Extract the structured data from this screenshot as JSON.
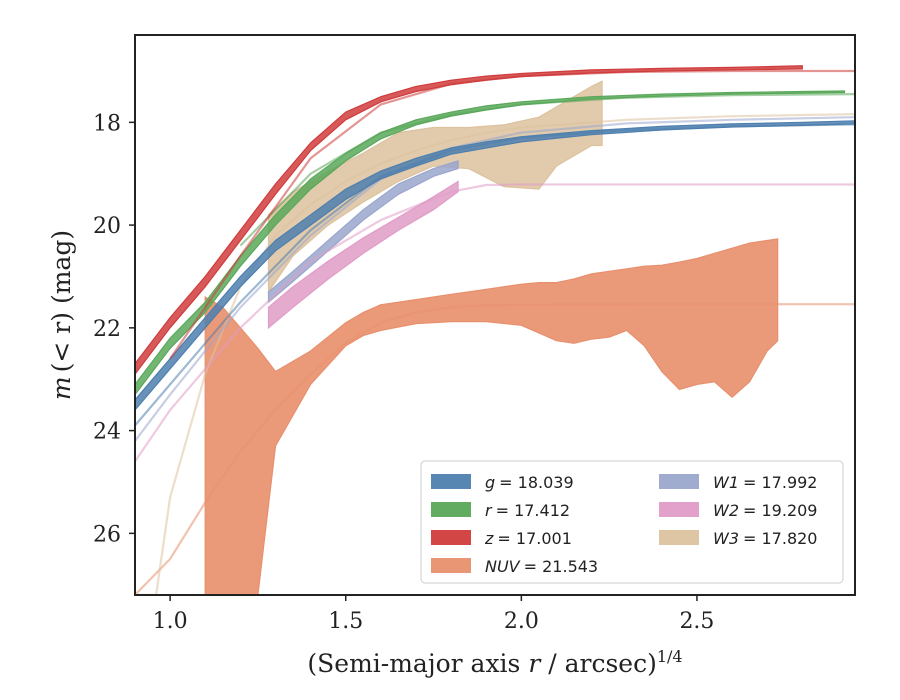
{
  "chart_data": {
    "type": "line",
    "xlabel_main": "(Semi-major axis ",
    "xlabel_var": "r",
    "xlabel_rest": " / arcsec)",
    "xlabel_sup": "1/4",
    "ylabel_main": "m",
    "ylabel_rest": "(< r) (mag)",
    "xlim": [
      0.9,
      2.95
    ],
    "ylim": [
      27.2,
      16.3
    ],
    "y_inverted": true,
    "xticks": [
      "1.0",
      "1.5",
      "2.0",
      "2.5"
    ],
    "yticks": [
      "18",
      "20",
      "22",
      "24",
      "26"
    ],
    "legend_position": "lower-right",
    "legend_columns": 2,
    "grid": false,
    "series": [
      {
        "name": "g = 18.039",
        "legend_var": "g",
        "legend_value": "= 18.039",
        "color": "#4e7fae",
        "kind": "band",
        "x": [
          0.9,
          1.0,
          1.1,
          1.2,
          1.3,
          1.4,
          1.5,
          1.6,
          1.7,
          1.8,
          1.9,
          2.0,
          2.2,
          2.4,
          2.6,
          2.8,
          2.95
        ],
        "y_upper": [
          23.4,
          22.6,
          21.8,
          21.0,
          20.3,
          19.8,
          19.3,
          18.95,
          18.7,
          18.5,
          18.38,
          18.28,
          18.16,
          18.08,
          18.03,
          18.0,
          17.97
        ],
        "y_lower": [
          23.6,
          22.8,
          22.0,
          21.2,
          20.5,
          20.0,
          19.5,
          19.1,
          18.85,
          18.62,
          18.5,
          18.38,
          18.24,
          18.15,
          18.09,
          18.06,
          18.03
        ],
        "model_x": [
          0.9,
          1.0,
          1.2,
          1.4,
          1.6,
          1.8,
          2.0,
          2.3,
          2.6,
          2.95
        ],
        "model_y": [
          23.9,
          23.1,
          21.5,
          20.1,
          19.05,
          18.55,
          18.3,
          18.15,
          18.08,
          18.04
        ]
      },
      {
        "name": "r = 17.412",
        "legend_var": "r",
        "legend_value": "= 17.412",
        "color": "#5aa85a",
        "kind": "band",
        "x": [
          0.9,
          1.0,
          1.1,
          1.2,
          1.3,
          1.4,
          1.5,
          1.6,
          1.7,
          1.8,
          1.9,
          2.0,
          2.2,
          2.4,
          2.6,
          2.8,
          2.92
        ],
        "y_upper": [
          23.1,
          22.2,
          21.5,
          20.6,
          19.8,
          19.1,
          18.6,
          18.2,
          17.95,
          17.8,
          17.68,
          17.6,
          17.5,
          17.45,
          17.42,
          17.4,
          17.39
        ],
        "y_lower": [
          23.3,
          22.4,
          21.7,
          20.8,
          20.0,
          19.3,
          18.75,
          18.32,
          18.05,
          17.88,
          17.76,
          17.66,
          17.55,
          17.49,
          17.45,
          17.43,
          17.42
        ],
        "model_x": [
          1.2,
          1.4,
          1.6,
          1.8,
          2.0,
          2.3,
          2.6,
          2.95
        ],
        "model_y": [
          20.4,
          19.0,
          18.2,
          17.85,
          17.65,
          17.52,
          17.47,
          17.45
        ]
      },
      {
        "name": "z = 17.001",
        "legend_var": "z",
        "legend_value": "= 17.001",
        "color": "#d03c3c",
        "kind": "band",
        "x": [
          0.9,
          1.0,
          1.1,
          1.2,
          1.3,
          1.4,
          1.5,
          1.6,
          1.7,
          1.8,
          1.9,
          2.0,
          2.2,
          2.4,
          2.6,
          2.8
        ],
        "y_upper": [
          22.7,
          21.8,
          21.0,
          20.1,
          19.2,
          18.4,
          17.8,
          17.5,
          17.3,
          17.18,
          17.1,
          17.05,
          16.98,
          16.95,
          16.93,
          16.9
        ],
        "y_lower": [
          22.9,
          22.0,
          21.2,
          20.3,
          19.4,
          18.55,
          17.95,
          17.6,
          17.4,
          17.27,
          17.18,
          17.11,
          17.04,
          17.0,
          16.98,
          16.96
        ],
        "model_x": [
          1.0,
          1.2,
          1.4,
          1.6,
          1.8,
          2.0,
          2.3,
          2.6,
          2.95
        ],
        "model_y": [
          22.6,
          20.6,
          18.7,
          17.65,
          17.25,
          17.1,
          17.02,
          17.0,
          17.0
        ]
      },
      {
        "name": "NUV = 21.543",
        "legend_var": "NUV",
        "legend_value": "= 21.543",
        "color": "#e8906e",
        "kind": "band",
        "x": [
          1.1,
          1.15,
          1.2,
          1.25,
          1.3,
          1.4,
          1.5,
          1.55,
          1.6,
          1.7,
          1.8,
          1.9,
          2.0,
          2.05,
          2.1,
          2.15,
          2.2,
          2.25,
          2.3,
          2.35,
          2.4,
          2.45,
          2.5,
          2.55,
          2.6,
          2.65,
          2.7,
          2.73
        ],
        "y_upper": [
          21.4,
          21.6,
          22.0,
          22.4,
          22.85,
          22.45,
          21.9,
          21.7,
          21.55,
          21.45,
          21.35,
          21.25,
          21.15,
          21.12,
          21.12,
          21.05,
          20.95,
          20.9,
          20.85,
          20.8,
          20.78,
          20.72,
          20.65,
          20.55,
          20.45,
          20.35,
          20.3,
          20.27
        ],
        "y_lower": [
          27.2,
          27.2,
          27.2,
          27.2,
          24.3,
          23.1,
          22.35,
          22.15,
          22.05,
          21.92,
          21.88,
          21.88,
          21.95,
          22.1,
          22.25,
          22.3,
          22.22,
          22.18,
          22.05,
          22.35,
          22.85,
          23.2,
          23.1,
          23.05,
          23.35,
          23.05,
          22.45,
          22.25
        ],
        "model_x": [
          0.9,
          1.0,
          1.1,
          1.2,
          1.3,
          1.4,
          1.5,
          1.6,
          1.7,
          1.8,
          1.9,
          2.0,
          2.5,
          2.95
        ],
        "model_y": [
          27.2,
          26.5,
          25.4,
          24.4,
          23.6,
          22.9,
          22.3,
          21.9,
          21.7,
          21.6,
          21.56,
          21.55,
          21.54,
          21.54
        ]
      },
      {
        "name": "W1 = 17.992",
        "legend_var": "W1",
        "legend_value": "= 17.992",
        "color": "#9aa6cc",
        "kind": "band",
        "x": [
          1.28,
          1.35,
          1.45,
          1.55,
          1.65,
          1.75,
          1.82
        ],
        "y_upper": [
          21.3,
          20.9,
          20.3,
          19.7,
          19.2,
          18.9,
          18.75
        ],
        "y_lower": [
          21.5,
          21.1,
          20.5,
          19.9,
          19.4,
          19.05,
          18.9
        ],
        "model_x": [
          0.9,
          1.0,
          1.2,
          1.4,
          1.6,
          1.8,
          2.0,
          2.3,
          2.6,
          2.95
        ],
        "model_y": [
          24.2,
          23.3,
          21.6,
          20.2,
          19.1,
          18.5,
          18.2,
          18.02,
          17.95,
          17.9
        ]
      },
      {
        "name": "W2 = 19.209",
        "legend_var": "W2",
        "legend_value": "= 19.209",
        "color": "#e09cc7",
        "kind": "band",
        "x": [
          1.28,
          1.35,
          1.45,
          1.55,
          1.65,
          1.75,
          1.82
        ],
        "y_upper": [
          21.6,
          21.2,
          20.7,
          20.25,
          19.85,
          19.45,
          19.15
        ],
        "y_lower": [
          22.0,
          21.6,
          21.05,
          20.55,
          20.1,
          19.7,
          19.35
        ],
        "model_x": [
          0.9,
          1.0,
          1.2,
          1.4,
          1.6,
          1.8,
          1.9,
          2.0,
          2.5,
          2.95
        ],
        "model_y": [
          24.6,
          23.6,
          22.0,
          20.7,
          19.9,
          19.35,
          19.22,
          19.21,
          19.21,
          19.21
        ]
      },
      {
        "name": "W3 = 17.820",
        "legend_var": "W3",
        "legend_value": "= 17.820",
        "color": "#dcc29e",
        "kind": "band",
        "x": [
          1.28,
          1.35,
          1.45,
          1.55,
          1.65,
          1.75,
          1.85,
          1.95,
          2.05,
          2.1,
          2.15,
          2.2,
          2.23
        ],
        "y_upper": [
          19.8,
          19.35,
          18.95,
          18.6,
          18.2,
          18.1,
          18.1,
          18.05,
          17.9,
          17.7,
          17.5,
          17.3,
          17.2
        ],
        "y_lower": [
          21.3,
          20.6,
          20.0,
          19.55,
          19.15,
          18.85,
          18.9,
          19.25,
          19.3,
          18.85,
          18.65,
          18.45,
          18.45
        ],
        "model_x": [
          0.9,
          0.96,
          1.0,
          1.1,
          1.2,
          1.3,
          1.4,
          1.5,
          1.6,
          1.7,
          1.8,
          1.9,
          2.0,
          2.3,
          2.6,
          2.95
        ],
        "model_y": [
          27.2,
          27.2,
          25.3,
          22.9,
          21.2,
          20.2,
          19.6,
          19.15,
          18.8,
          18.55,
          18.35,
          18.2,
          18.1,
          17.95,
          17.88,
          17.84
        ]
      }
    ]
  }
}
